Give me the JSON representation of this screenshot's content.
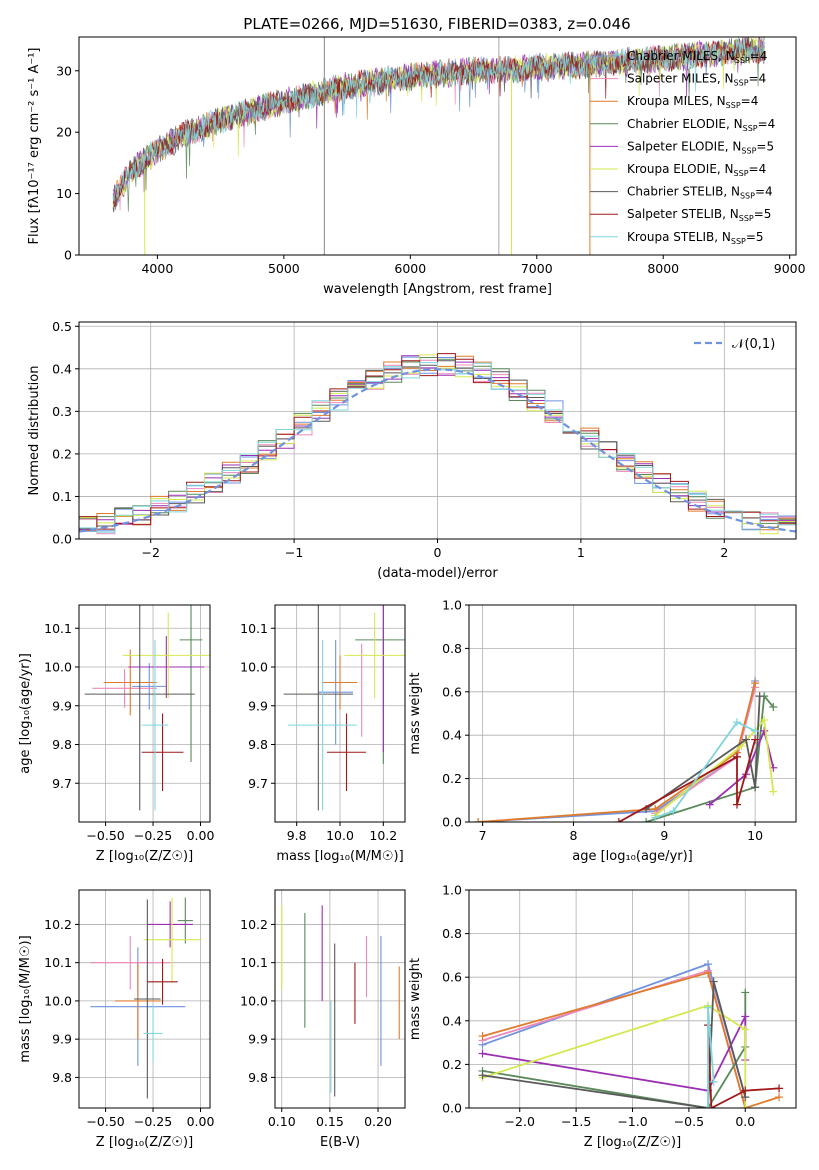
{
  "figure_title": "PLATE=0266, MJD=51630, FIBERID=0383, z=0.046",
  "colors": [
    "#6f93e0",
    "#ee88bb",
    "#e07b2c",
    "#5a8a5a",
    "#9b2fb2",
    "#d6e84f",
    "#5a5a5a",
    "#a11818",
    "#7fd6dc"
  ],
  "chart_data": [
    {
      "id": "spectrum",
      "type": "line",
      "title": "PLATE=0266, MJD=51630, FIBERID=0383, z=0.046",
      "xlabel": "wavelength [Angstrom, rest frame]",
      "ylabel": "Flux [fλ10⁻¹⁷ erg cm⁻² s⁻¹ A⁻¹]",
      "xlim": [
        3380,
        9050
      ],
      "ylim": [
        0,
        35.5
      ],
      "xticks": [
        4000,
        5000,
        6000,
        7000,
        8000,
        9000
      ],
      "yticks": [
        0,
        10,
        20,
        30
      ],
      "grid": false,
      "legend_placement": "upper-right",
      "legend": [
        "Chabrier MILES, N_SSP=4",
        "Salpeter MILES, N_SSP=4",
        "Kroupa MILES, N_SSP=4",
        "Chabrier ELODIE, N_SSP=4",
        "Salpeter ELODIE, N_SSP=5",
        "Kroupa ELODIE, N_SSP=4",
        "Chabrier STELIB, N_SSP=4",
        "Salpeter STELIB, N_SSP=5",
        "Kroupa STELIB, N_SSP=5"
      ],
      "continuum": {
        "x": [
          3650,
          3800,
          4000,
          4200,
          4500,
          5000,
          5500,
          6000,
          6500,
          7000,
          7400,
          8000,
          8500,
          8800
        ],
        "y": [
          9,
          14,
          17,
          19.5,
          22,
          25,
          27.5,
          29,
          30,
          30.5,
          31,
          32,
          33,
          33.5
        ]
      },
      "spikes": [
        {
          "x": 5320,
          "y_low": 0,
          "y_high": 35.5
        },
        {
          "x": 6700,
          "y_low": 0,
          "y_high": 35.5
        },
        {
          "x": 3900,
          "y_low": 0,
          "y_high": 14
        },
        {
          "x": 6800,
          "y_low": 0,
          "y_high": 30
        },
        {
          "x": 7420,
          "y_low": 0,
          "y_high": 31
        }
      ]
    },
    {
      "id": "residual-histogram",
      "type": "line",
      "xlabel": "(data-model)/error",
      "ylabel": "Normed distribution",
      "xlim": [
        -2.5,
        2.5
      ],
      "ylim": [
        0,
        0.51
      ],
      "xticks": [
        -2,
        -1,
        0,
        1,
        2
      ],
      "yticks": [
        0.0,
        0.1,
        0.2,
        0.3,
        0.4,
        0.5
      ],
      "grid": true,
      "legend_placement": "upper-right",
      "reference_curve": {
        "name": "𝒩(0,1)",
        "mean": 0,
        "sigma": 1,
        "color": "#6f93e0",
        "style": "dashed"
      }
    },
    {
      "id": "age-vs-Z",
      "type": "scatter",
      "xlabel": "Z [log₁₀(Z/Z☉)]",
      "ylabel": "age  [log₁₀(age/yr)]",
      "xlim": [
        -0.64,
        0.05
      ],
      "ylim": [
        9.6,
        10.16
      ],
      "xticks": [
        -0.5,
        -0.25,
        0.0
      ],
      "yticks": [
        9.7,
        9.8,
        9.9,
        10.0,
        10.1
      ],
      "grid": true,
      "errorbars": [
        {
          "x": -0.27,
          "xerr": 0.09,
          "y": 9.95,
          "yerr": 0.06
        },
        {
          "x": -0.4,
          "xerr": 0.17,
          "y": 9.945,
          "yerr": 0.05
        },
        {
          "x": -0.37,
          "xerr": 0.14,
          "y": 9.96,
          "yerr": 0.085
        },
        {
          "x": -0.05,
          "xerr": 0.06,
          "y": 10.07,
          "yerr": 0.315
        },
        {
          "x": -0.18,
          "xerr": 0.2,
          "y": 10.0,
          "yerr": 0.08
        },
        {
          "x": -0.17,
          "xerr": 0.24,
          "y": 10.03,
          "yerr": 0.11
        },
        {
          "x": -0.32,
          "xerr": 0.29,
          "y": 9.93,
          "yerr": 0.3
        },
        {
          "x": -0.2,
          "xerr": 0.11,
          "y": 9.78,
          "yerr": 0.1
        },
        {
          "x": -0.24,
          "xerr": 0.07,
          "y": 9.85,
          "yerr": 0.22
        }
      ]
    },
    {
      "id": "age-vs-mass",
      "type": "scatter",
      "xlabel": "mass [log₁₀(M/M☉)]",
      "ylabel": "",
      "xlim": [
        9.7,
        10.3
      ],
      "ylim": [
        9.6,
        10.16
      ],
      "xticks": [
        9.8,
        10.0,
        10.2
      ],
      "yticks": [
        9.7,
        9.8,
        9.9,
        10.0,
        10.1
      ],
      "grid": true,
      "errorbars": [
        {
          "x": 9.98,
          "xerr": 0.08,
          "y": 9.935,
          "yerr": 0.135
        },
        {
          "x": 10.1,
          "xerr": 0.0,
          "y": 9.94,
          "yerr": 0.12
        },
        {
          "x": 10.0,
          "xerr": 0.08,
          "y": 9.96,
          "yerr": 0.07
        },
        {
          "x": 10.2,
          "xerr": 0.13,
          "y": 10.07,
          "yerr": 0.32
        },
        {
          "x": 10.2,
          "xerr": 0.0,
          "y": 9.98,
          "yerr": 0.2
        },
        {
          "x": 10.16,
          "xerr": 0.14,
          "y": 10.03,
          "yerr": 0.11
        },
        {
          "x": 9.9,
          "xerr": 0.16,
          "y": 9.93,
          "yerr": 0.3
        },
        {
          "x": 10.03,
          "xerr": 0.09,
          "y": 9.78,
          "yerr": 0.1
        },
        {
          "x": 9.92,
          "xerr": 0.16,
          "y": 9.85,
          "yerr": 0.22
        }
      ]
    },
    {
      "id": "mass-weight-vs-age",
      "type": "line",
      "xlabel": "age  [log₁₀(age/yr)]",
      "ylabel": "mass weight",
      "xlim": [
        6.85,
        10.45
      ],
      "ylim": [
        0,
        1.0
      ],
      "xticks": [
        7,
        8,
        9,
        10
      ],
      "yticks": [
        0.0,
        0.2,
        0.4,
        0.6,
        0.8,
        1.0
      ],
      "grid": true,
      "series": [
        {
          "x": [
            6.95,
            8.9,
            9.8,
            10.0
          ],
          "y": [
            0.0,
            0.05,
            0.3,
            0.65
          ]
        },
        {
          "x": [
            8.9,
            9.8,
            10.0
          ],
          "y": [
            0.04,
            0.3,
            0.62
          ]
        },
        {
          "x": [
            6.95,
            8.9,
            9.8,
            10.0
          ],
          "y": [
            0.0,
            0.06,
            0.32,
            0.64
          ]
        },
        {
          "x": [
            8.8,
            10.0,
            10.1,
            10.2
          ],
          "y": [
            0.0,
            0.16,
            0.58,
            0.53
          ]
        },
        {
          "x": [
            9.5,
            9.9,
            10.1,
            10.2
          ],
          "y": [
            0.08,
            0.22,
            0.42,
            0.25
          ]
        },
        {
          "x": [
            8.9,
            9.85,
            10.1,
            10.2
          ],
          "y": [
            0.03,
            0.35,
            0.47,
            0.14
          ]
        },
        {
          "x": [
            8.8,
            9.9,
            10.0,
            10.05
          ],
          "y": [
            0.06,
            0.38,
            0.16,
            0.58
          ]
        },
        {
          "x": [
            8.5,
            9.8,
            9.8,
            10.0
          ],
          "y": [
            0.0,
            0.3,
            0.08,
            0.38
          ]
        },
        {
          "x": [
            8.9,
            9.1,
            9.8,
            10.0
          ],
          "y": [
            0.02,
            0.05,
            0.46,
            0.42
          ]
        }
      ]
    },
    {
      "id": "mass-vs-Z",
      "type": "scatter",
      "xlabel": "Z [log₁₀(Z/Z☉)]",
      "ylabel": "mass [log₁₀(M/M☉)]",
      "xlim": [
        -0.64,
        0.05
      ],
      "ylim": [
        9.72,
        10.29
      ],
      "xticks": [
        -0.5,
        -0.25,
        0.0
      ],
      "yticks": [
        9.8,
        9.9,
        10.0,
        10.1,
        10.2
      ],
      "grid": true,
      "errorbars": [
        {
          "x": -0.33,
          "xerr": 0.25,
          "y": 9.985,
          "yerr": 0.155
        },
        {
          "x": -0.37,
          "xerr": 0.21,
          "y": 10.1,
          "yerr": 0.07
        },
        {
          "x": -0.33,
          "xerr": 0.12,
          "y": 10.0,
          "yerr": 0.1
        },
        {
          "x": -0.08,
          "xerr": 0.04,
          "y": 10.21,
          "yerr": 0.06
        },
        {
          "x": -0.16,
          "xerr": 0.12,
          "y": 10.2,
          "yerr": 0.06
        },
        {
          "x": -0.15,
          "xerr": 0.15,
          "y": 10.16,
          "yerr": 0.11
        },
        {
          "x": -0.28,
          "xerr": 0.07,
          "y": 10.005,
          "yerr": 0.26
        },
        {
          "x": -0.2,
          "xerr": 0.08,
          "y": 10.05,
          "yerr": 0.06
        },
        {
          "x": -0.25,
          "xerr": 0.05,
          "y": 9.915,
          "yerr": 0.075
        }
      ]
    },
    {
      "id": "mass-vs-EBV",
      "type": "scatter",
      "xlabel": "E(B-V)",
      "ylabel": "",
      "xlim": [
        0.093,
        0.228
      ],
      "ylim": [
        9.72,
        10.29
      ],
      "xticks": [
        0.1,
        0.15,
        0.2
      ],
      "yticks": [
        9.8,
        9.9,
        10.0,
        10.1,
        10.2
      ],
      "grid": true,
      "errorbars": [
        {
          "x": 0.203,
          "xerr": 0.0,
          "y": 10.0,
          "yerr": 0.17
        },
        {
          "x": 0.188,
          "xerr": 0.0,
          "y": 10.09,
          "yerr": 0.08
        },
        {
          "x": 0.222,
          "xerr": 0.0,
          "y": 9.995,
          "yerr": 0.095
        },
        {
          "x": 0.124,
          "xerr": 0.0,
          "y": 10.08,
          "yerr": 0.15
        },
        {
          "x": 0.142,
          "xerr": 0.0,
          "y": 10.125,
          "yerr": 0.125
        },
        {
          "x": 0.1,
          "xerr": 0.0,
          "y": 10.14,
          "yerr": 0.11
        },
        {
          "x": 0.155,
          "xerr": 0.0,
          "y": 9.95,
          "yerr": 0.2
        },
        {
          "x": 0.176,
          "xerr": 0.0,
          "y": 10.02,
          "yerr": 0.08
        },
        {
          "x": 0.151,
          "xerr": 0.0,
          "y": 9.88,
          "yerr": 0.12
        }
      ]
    },
    {
      "id": "mass-weight-vs-Z",
      "type": "line",
      "xlabel": "Z [log₁₀(Z/Z☉)]",
      "ylabel": "mass weight",
      "xlim": [
        -2.45,
        0.45
      ],
      "ylim": [
        0,
        1.0
      ],
      "xticks": [
        -2.0,
        -1.5,
        -1.0,
        -0.5,
        0.0
      ],
      "yticks": [
        0.0,
        0.2,
        0.4,
        0.6,
        0.8,
        1.0
      ],
      "grid": true,
      "series": [
        {
          "x": [
            -2.33,
            -0.33,
            0.0
          ],
          "y": [
            0.29,
            0.66,
            0.05
          ]
        },
        {
          "x": [
            -2.33,
            -0.33,
            0.0
          ],
          "y": [
            0.31,
            0.63,
            0.0
          ]
        },
        {
          "x": [
            -2.33,
            -0.33,
            0.0,
            0.3
          ],
          "y": [
            0.33,
            0.62,
            0.0,
            0.05
          ]
        },
        {
          "x": [
            -2.33,
            -0.33,
            0.0,
            0.0
          ],
          "y": [
            0.17,
            0.0,
            0.28,
            0.53
          ]
        },
        {
          "x": [
            -2.33,
            -0.33,
            0.0,
            0.0
          ],
          "y": [
            0.25,
            0.08,
            0.42,
            0.22
          ]
        },
        {
          "x": [
            -2.33,
            -0.33,
            0.0,
            0.0
          ],
          "y": [
            0.14,
            0.47,
            0.36,
            0.0
          ]
        },
        {
          "x": [
            -2.33,
            -0.33,
            -0.28,
            0.0
          ],
          "y": [
            0.15,
            0.0,
            0.58,
            0.05
          ]
        },
        {
          "x": [
            -0.33,
            -0.3,
            0.0,
            0.3
          ],
          "y": [
            0.38,
            0.0,
            0.08,
            0.09
          ]
        },
        {
          "x": [
            -0.33,
            -0.33,
            -0.28
          ],
          "y": [
            0.0,
            0.46,
            0.12
          ]
        }
      ]
    }
  ]
}
